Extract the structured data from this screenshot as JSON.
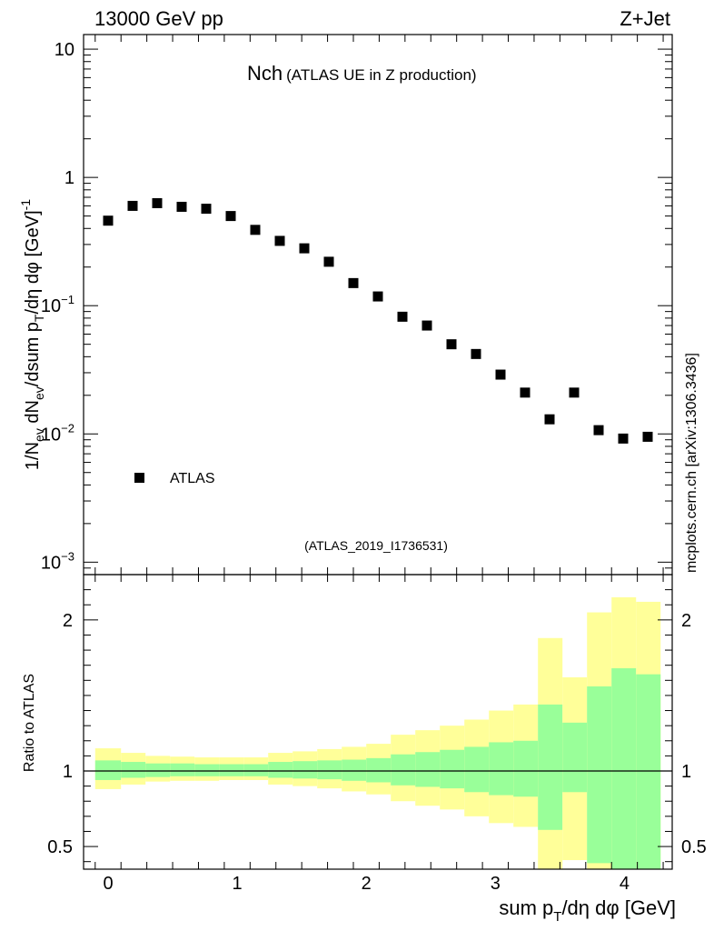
{
  "header": {
    "left": "13000 GeV pp",
    "right": "Z+Jet"
  },
  "side_label": "mcplots.cern.ch [arXiv:1306.3436]",
  "colors": {
    "marker": "#000000",
    "band_inner": "#99ff99",
    "band_outer": "#ffff99",
    "ref_line": "#000000",
    "watermark": "#999999"
  },
  "chart_data": [
    {
      "type": "scatter",
      "title_main": "Nch",
      "title_sub": "(ATLAS UE in Z production)",
      "analysis_id": "(ATLAS_2019_I1736531)",
      "ylabel": "1/N_ev dN_ev/dsum p_T/dη dφ [GeV]^-1",
      "yscale": "log",
      "ylim": [
        0.0008,
        13
      ],
      "xlim": [
        -0.19,
        4.37
      ],
      "yticks": [
        {
          "value": 10,
          "label": "10",
          "sup": ""
        },
        {
          "value": 1,
          "label": "1",
          "sup": ""
        },
        {
          "value": 0.1,
          "label": "10",
          "sup": "−1"
        },
        {
          "value": 0.01,
          "label": "10",
          "sup": "−2"
        },
        {
          "value": 0.001,
          "label": "10",
          "sup": "−3"
        }
      ],
      "legend": [
        {
          "label": "ATLAS",
          "marker": "square"
        }
      ],
      "series": [
        {
          "name": "ATLAS",
          "x": [
            0.0,
            0.19,
            0.38,
            0.57,
            0.76,
            0.95,
            1.14,
            1.33,
            1.52,
            1.71,
            1.9,
            2.09,
            2.28,
            2.47,
            2.66,
            2.85,
            3.04,
            3.23,
            3.42,
            3.61,
            3.8,
            3.99,
            4.18
          ],
          "y": [
            0.46,
            0.6,
            0.63,
            0.59,
            0.57,
            0.5,
            0.39,
            0.32,
            0.28,
            0.22,
            0.15,
            0.118,
            0.082,
            0.07,
            0.05,
            0.042,
            0.029,
            0.021,
            0.013,
            0.021,
            0.0107,
            0.0092,
            0.0095
          ]
        }
      ]
    },
    {
      "type": "area",
      "ylabel": "Ratio to ATLAS",
      "xlabel": "sum p_T/dη dφ [GeV]",
      "ylim": [
        0.35,
        2.3
      ],
      "xlim": [
        -0.19,
        4.37
      ],
      "xticks": [
        0,
        1,
        2,
        3,
        4
      ],
      "yticks": [
        0.5,
        1,
        2
      ],
      "reference": 1.0,
      "bins": {
        "edges": [
          -0.1,
          0.1,
          0.29,
          0.48,
          0.67,
          0.86,
          1.05,
          1.24,
          1.43,
          1.62,
          1.81,
          2.0,
          2.19,
          2.38,
          2.57,
          2.76,
          2.95,
          3.14,
          3.33,
          3.52,
          3.71,
          3.9,
          4.09,
          4.28
        ],
        "inner_low": [
          0.94,
          0.955,
          0.96,
          0.965,
          0.965,
          0.965,
          0.965,
          0.955,
          0.95,
          0.945,
          0.935,
          0.925,
          0.905,
          0.895,
          0.885,
          0.86,
          0.84,
          0.83,
          0.61,
          0.86,
          0.39,
          0.33,
          0.33
        ],
        "inner_high": [
          1.07,
          1.06,
          1.05,
          1.05,
          1.045,
          1.045,
          1.045,
          1.06,
          1.065,
          1.07,
          1.075,
          1.085,
          1.11,
          1.125,
          1.14,
          1.16,
          1.19,
          1.2,
          1.44,
          1.32,
          1.56,
          1.68,
          1.64
        ],
        "outer_low": [
          0.88,
          0.91,
          0.93,
          0.935,
          0.935,
          0.94,
          0.94,
          0.91,
          0.9,
          0.885,
          0.865,
          0.845,
          0.8,
          0.77,
          0.745,
          0.7,
          0.655,
          0.63,
          0.33,
          0.41,
          0.33,
          0.33,
          0.33
        ],
        "outer_high": [
          1.15,
          1.12,
          1.1,
          1.095,
          1.09,
          1.09,
          1.09,
          1.12,
          1.13,
          1.145,
          1.16,
          1.18,
          1.24,
          1.27,
          1.3,
          1.34,
          1.4,
          1.44,
          1.88,
          1.62,
          2.05,
          2.15,
          2.12
        ]
      }
    }
  ]
}
